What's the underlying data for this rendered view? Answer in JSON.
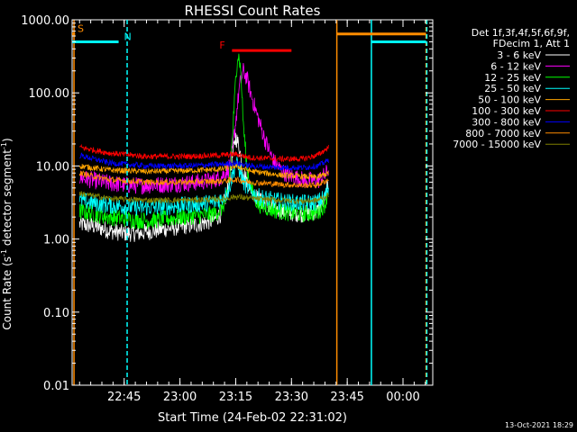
{
  "chart_data": {
    "type": "line",
    "title": "RHESSI Count Rates",
    "xlabel": "Start Time (24-Feb-02 22:31:02)",
    "ylabel_parts": [
      "Count Rate (s",
      "-1",
      " detector segment",
      "-1",
      ")"
    ],
    "yscale": "log",
    "ylim": [
      0.01,
      1000
    ],
    "xlim_minutes_after_2231": [
      0,
      97
    ],
    "yticks": [
      {
        "value": 1000,
        "label": "1000.00"
      },
      {
        "value": 100,
        "label": "100.00"
      },
      {
        "value": 10,
        "label": "10.00"
      },
      {
        "value": 1,
        "label": "1.00"
      },
      {
        "value": 0.1,
        "label": "0.10"
      },
      {
        "value": 0.01,
        "label": "0.01"
      }
    ],
    "xticks": [
      {
        "t": 14,
        "label": "22:45"
      },
      {
        "t": 29,
        "label": "23:00"
      },
      {
        "t": 44,
        "label": "23:15"
      },
      {
        "t": 59,
        "label": "23:30"
      },
      {
        "t": 74,
        "label": "23:45"
      },
      {
        "t": 89,
        "label": "00:00"
      }
    ],
    "legend_header": [
      "Det 1f,3f,4f,5f,6f,9f,",
      "FDecim 1, Att 1"
    ],
    "legend_position": "right",
    "data_gap_minutes": [
      69.3,
      95
    ],
    "series": [
      {
        "name": "3 - 6 keV",
        "color": "#ffffff",
        "x": [
          2,
          6,
          10,
          14,
          18,
          22,
          26,
          30,
          34,
          38,
          40,
          42,
          43,
          44,
          45,
          46,
          48,
          50,
          54,
          58,
          62,
          66,
          68,
          69
        ],
        "y": [
          1.6,
          1.5,
          1.3,
          1.2,
          1.2,
          1.3,
          1.4,
          1.5,
          1.6,
          1.8,
          2.2,
          5,
          12,
          25,
          18,
          8,
          5,
          3.5,
          2.6,
          2.3,
          2.2,
          2.4,
          3.5,
          6
        ]
      },
      {
        "name": "6 - 12 keV",
        "color": "#ff00ff",
        "x": [
          2,
          6,
          10,
          14,
          18,
          22,
          26,
          30,
          34,
          38,
          40,
          42,
          43,
          44,
          45,
          46,
          47,
          48,
          50,
          52,
          54,
          56,
          58,
          62,
          66,
          68,
          69
        ],
        "y": [
          7,
          6.3,
          5.8,
          5.5,
          5.4,
          5.5,
          5.6,
          5.8,
          6,
          6.4,
          7,
          9,
          14,
          40,
          120,
          200,
          160,
          100,
          45,
          22,
          12,
          9,
          7.5,
          6.5,
          6.2,
          7.5,
          9
        ]
      },
      {
        "name": "12 - 25 keV",
        "color": "#00ff00",
        "x": [
          2,
          6,
          10,
          14,
          18,
          22,
          26,
          30,
          34,
          38,
          40,
          42,
          43,
          44,
          44.5,
          45,
          45.5,
          46,
          47,
          48,
          50,
          54,
          58,
          62,
          66,
          68,
          69
        ],
        "y": [
          2.4,
          2.2,
          2.0,
          1.9,
          1.8,
          1.8,
          1.9,
          2.0,
          2.1,
          2.2,
          2.5,
          4,
          20,
          150,
          330,
          300,
          150,
          40,
          10,
          5,
          3,
          2.5,
          2.3,
          2.2,
          2.3,
          3,
          5
        ]
      },
      {
        "name": "25 - 50 keV",
        "color": "#00ffff",
        "x": [
          2,
          6,
          10,
          14,
          18,
          22,
          26,
          30,
          34,
          38,
          40,
          42,
          43,
          44,
          45,
          46,
          48,
          50,
          54,
          58,
          62,
          66,
          68,
          69
        ],
        "y": [
          3.4,
          3.1,
          2.9,
          2.8,
          2.7,
          2.7,
          2.8,
          2.9,
          3.0,
          3.2,
          3.5,
          4.5,
          7,
          11,
          9,
          6,
          4.5,
          3.8,
          3.4,
          3.2,
          3.1,
          3.2,
          3.8,
          5
        ]
      },
      {
        "name": "50 - 100 keV",
        "color": "#ffa500",
        "x": [
          2,
          10,
          20,
          30,
          40,
          44,
          48,
          56,
          62,
          66,
          69
        ],
        "y": [
          10,
          8.8,
          8.4,
          8.6,
          9,
          10,
          8.5,
          7.5,
          7.2,
          7,
          8
        ]
      },
      {
        "name": "100 - 300 keV",
        "color": "#ff0000",
        "x": [
          2,
          10,
          20,
          30,
          40,
          44,
          48,
          56,
          62,
          66,
          69
        ],
        "y": [
          18,
          15,
          13.5,
          13.5,
          14,
          14.5,
          13,
          12.5,
          12.5,
          14,
          18
        ]
      },
      {
        "name": "300 - 800 keV",
        "color": "#0000ff",
        "x": [
          2,
          10,
          20,
          30,
          40,
          44,
          48,
          56,
          62,
          66,
          69
        ],
        "y": [
          14,
          11,
          10,
          10,
          10.5,
          11,
          10,
          9.5,
          9.5,
          10,
          12
        ]
      },
      {
        "name": "800 - 7000 keV",
        "color": "#ff8c00",
        "x": [
          2,
          10,
          20,
          30,
          40,
          44,
          48,
          56,
          62,
          66,
          69
        ],
        "y": [
          8,
          6.5,
          6,
          6,
          6.2,
          6.5,
          6,
          5.6,
          5.4,
          5.5,
          6.5
        ]
      },
      {
        "name": "7000 - 15000 keV",
        "color": "#808000",
        "x": [
          2,
          10,
          20,
          30,
          40,
          44,
          48,
          56,
          62,
          66,
          69
        ],
        "y": [
          4.2,
          3.6,
          3.4,
          3.4,
          3.5,
          3.8,
          3.6,
          3.4,
          3.3,
          3.4,
          4
        ]
      }
    ],
    "flags": [
      {
        "label": "S",
        "color": "#ff8c00",
        "y": 640,
        "x_start": 0,
        "x_end": 0.8
      },
      {
        "label": "N",
        "color": "#00ffff",
        "y": 500,
        "x_start": 0,
        "x_end": 12.5
      },
      {
        "label": "F",
        "color": "#ff0000",
        "y": 380,
        "x_start": 43,
        "x_end": 59
      },
      {
        "label": "",
        "color": "#ff8c00",
        "y": 640,
        "x_start": 71.2,
        "x_end": 95.2
      },
      {
        "label": "",
        "color": "#00ffff",
        "y": 500,
        "x_start": 80.5,
        "x_end": 95.2
      }
    ],
    "vlines": [
      {
        "t": 0.5,
        "color": "#ff8c00",
        "style": "solid"
      },
      {
        "t": 14.8,
        "color": "#00ffff",
        "style": "dashed"
      },
      {
        "t": 71.2,
        "color": "#ff8c00",
        "style": "solid"
      },
      {
        "t": 80.5,
        "color": "#00ffff",
        "style": "solid"
      },
      {
        "t": 95.2,
        "color": "#ff8c00",
        "style": "dashed"
      },
      {
        "t": 95.4,
        "color": "#00ffff",
        "style": "dashed"
      }
    ],
    "footer_date": "13-Oct-2021 18:29"
  }
}
